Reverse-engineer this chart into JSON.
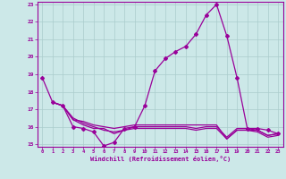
{
  "xlabel": "Windchill (Refroidissement éolien,°C)",
  "background_color": "#cce8e8",
  "line_color": "#990099",
  "grid_color": "#aacccc",
  "xlim": [
    -0.5,
    23.5
  ],
  "ylim": [
    14.85,
    23.15
  ],
  "yticks": [
    15,
    16,
    17,
    18,
    19,
    20,
    21,
    22,
    23
  ],
  "xticks": [
    0,
    1,
    2,
    3,
    4,
    5,
    6,
    7,
    8,
    9,
    10,
    11,
    12,
    13,
    14,
    15,
    16,
    17,
    18,
    19,
    20,
    21,
    22,
    23
  ],
  "series": [
    {
      "x": [
        0,
        1,
        2,
        3,
        4,
        5,
        6,
        7,
        8,
        9,
        10,
        11,
        12,
        13,
        14,
        15,
        16,
        17,
        18,
        19,
        20,
        21,
        22,
        23
      ],
      "y": [
        18.8,
        17.4,
        17.2,
        16.0,
        15.9,
        15.7,
        14.9,
        15.1,
        15.9,
        16.0,
        17.2,
        19.2,
        19.9,
        20.3,
        20.6,
        21.3,
        22.4,
        23.0,
        21.2,
        18.8,
        15.9,
        15.9,
        15.8,
        15.6
      ],
      "marker": "D",
      "markersize": 2.0,
      "linewidth": 0.9
    },
    {
      "x": [
        1,
        2,
        3,
        4,
        5,
        6,
        7,
        8,
        9,
        10,
        11,
        12,
        13,
        14,
        15,
        16,
        17,
        18,
        19,
        20,
        21,
        22,
        23
      ],
      "y": [
        17.4,
        17.2,
        16.4,
        16.3,
        16.1,
        16.0,
        15.9,
        16.0,
        16.1,
        16.1,
        16.1,
        16.1,
        16.1,
        16.1,
        16.1,
        16.1,
        16.1,
        15.3,
        15.8,
        15.8,
        15.8,
        15.5,
        15.6
      ],
      "marker": null,
      "markersize": 0,
      "linewidth": 0.9
    },
    {
      "x": [
        1,
        2,
        3,
        4,
        5,
        6,
        7,
        8,
        9,
        10,
        11,
        12,
        13,
        14,
        15,
        16,
        17,
        18,
        19,
        20,
        21,
        22,
        23
      ],
      "y": [
        17.4,
        17.2,
        16.4,
        16.1,
        15.9,
        15.9,
        15.6,
        15.8,
        16.0,
        16.0,
        16.0,
        16.0,
        16.0,
        16.0,
        15.9,
        16.0,
        16.0,
        15.4,
        15.9,
        15.9,
        15.8,
        15.5,
        15.6
      ],
      "marker": null,
      "markersize": 0,
      "linewidth": 0.9
    },
    {
      "x": [
        1,
        2,
        3,
        4,
        5,
        6,
        7,
        8,
        9,
        10,
        11,
        12,
        13,
        14,
        15,
        16,
        17,
        18,
        19,
        20,
        21,
        22,
        23
      ],
      "y": [
        17.4,
        17.2,
        16.5,
        16.2,
        16.0,
        15.8,
        15.7,
        15.8,
        15.9,
        15.9,
        15.9,
        15.9,
        15.9,
        15.9,
        15.8,
        15.9,
        15.9,
        15.3,
        15.8,
        15.8,
        15.7,
        15.4,
        15.5
      ],
      "marker": null,
      "markersize": 0,
      "linewidth": 0.9
    }
  ]
}
